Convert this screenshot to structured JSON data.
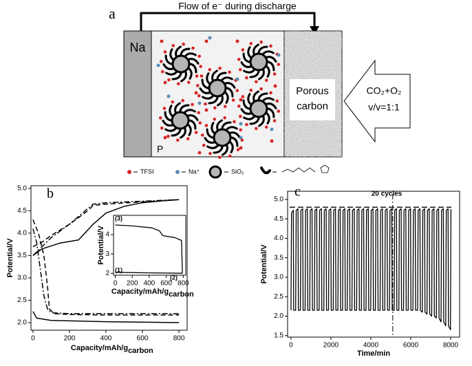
{
  "diagram": {
    "label": "a",
    "flow_label": "Flow of e⁻ during discharge",
    "anode": "Na",
    "cathode": [
      "Porous",
      "carbon"
    ],
    "gas": [
      "CO₂+O₂",
      "v/v=1:1"
    ],
    "electrolyte": "P",
    "legend": [
      "TFSI",
      "Na⁺",
      "SiO₂"
    ]
  },
  "chart_data": [
    {
      "type": "line",
      "label": "b",
      "xlabel": "Capacity/mAh/g",
      "xlabel_sub": "carbon",
      "ylabel": "Potential/V",
      "xlim": [
        -11,
        845
      ],
      "ylim": [
        1.83,
        5.06
      ],
      "xticks": [
        0,
        200,
        400,
        600,
        800
      ],
      "yticks": [
        {
          "value": 2,
          "label": "2.0"
        },
        2.5,
        {
          "value": 3,
          "label": "3.0"
        },
        3.5,
        {
          "value": 4,
          "label": "4.0"
        },
        4.5,
        {
          "value": 5,
          "label": "5.0"
        }
      ],
      "series": [
        {
          "color": "#000000",
          "dash": "solid",
          "x": [
            0,
            20,
            100,
            400,
            800
          ],
          "values": [
            2.25,
            2.1,
            2.05,
            2.02,
            2.0
          ]
        },
        {
          "color": "#000000",
          "dash": "solid",
          "x": [
            0,
            50,
            150,
            250,
            330,
            400,
            500,
            600,
            700,
            800
          ],
          "values": [
            3.5,
            3.65,
            3.78,
            3.85,
            4.2,
            4.45,
            4.6,
            4.68,
            4.72,
            4.75
          ]
        },
        {
          "color": "#000000",
          "dash": "dashed",
          "x": [
            0,
            30,
            60,
            80,
            90,
            120,
            200,
            400,
            800
          ],
          "values": [
            4.3,
            4.0,
            3.5,
            2.8,
            2.3,
            2.2,
            2.18,
            2.17,
            2.17
          ]
        },
        {
          "color": "#000000",
          "dash": "dashed",
          "x": [
            0,
            50,
            100,
            200,
            300,
            330,
            400,
            600,
            800
          ],
          "values": [
            3.7,
            3.8,
            3.95,
            4.2,
            4.5,
            4.62,
            4.65,
            4.7,
            4.75
          ]
        },
        {
          "color": "#000000",
          "dash": "dashdot",
          "x": [
            0,
            20,
            40,
            60,
            80,
            100,
            200,
            800
          ],
          "values": [
            4.1,
            3.8,
            3.2,
            2.6,
            2.3,
            2.22,
            2.2,
            2.2
          ]
        },
        {
          "color": "#000000",
          "dash": "dashdot",
          "x": [
            0,
            100,
            200,
            300,
            330,
            400,
            800
          ],
          "values": [
            3.5,
            3.9,
            4.2,
            4.55,
            4.65,
            4.68,
            4.75
          ]
        }
      ]
    },
    {
      "type": "line",
      "xlabel": "Capacity/mAh/g",
      "xlabel_sub": "carbon",
      "ylabel": "Potential/V",
      "xlim": [
        -20,
        830
      ],
      "ylim": [
        1.9,
        5.0
      ],
      "xticks": [
        0,
        200,
        400,
        600,
        800
      ],
      "yticks": [
        2,
        3,
        4
      ],
      "annotations": [
        "(1)",
        "(2)",
        "(3)"
      ],
      "series": [
        {
          "color": "#000000",
          "dash": "solid",
          "x": [
            0,
            200,
            430,
            520,
            560,
            700,
            780,
            790
          ],
          "values": [
            4.5,
            4.45,
            4.35,
            4.2,
            3.95,
            3.85,
            3.7,
            2.0
          ]
        },
        {
          "color": "#000000",
          "dash": "solid",
          "x": [
            0,
            400,
            790
          ],
          "values": [
            2.05,
            2.02,
            2.0
          ]
        }
      ]
    },
    {
      "type": "line",
      "label": "c",
      "xlabel": "Time/min",
      "ylabel": "Potential/V",
      "xlim": [
        -170,
        8450
      ],
      "ylim": [
        1.46,
        5.21
      ],
      "xticks": [
        0,
        2000,
        4000,
        6000,
        8000
      ],
      "yticks": [
        1.5,
        {
          "value": 2,
          "label": "2.0"
        },
        2.5,
        {
          "value": 3,
          "label": "3.0"
        },
        3.5,
        {
          "value": 4,
          "label": "4.0"
        },
        4.5,
        {
          "value": 5,
          "label": "5.0"
        }
      ],
      "hline": 4.8,
      "vline": 5100,
      "annotation": "20 cycles",
      "series": [
        {
          "color": "#000000",
          "dash": "solid",
          "x": [
            0,
            25,
            115,
            135,
            235,
            260,
            350,
            370,
            470,
            495,
            585,
            605,
            705,
            730,
            820,
            840,
            940,
            965,
            1055,
            1075,
            1175,
            1200,
            1290,
            1310,
            1410,
            1435,
            1525,
            1545,
            1645,
            1670,
            1760,
            1780,
            1880,
            1905,
            1995,
            2015,
            2115,
            2140,
            2230,
            2250,
            2350,
            2375,
            2465,
            2485,
            2585,
            2610,
            2700,
            2720,
            2820,
            2845,
            2935,
            2955,
            3055,
            3080,
            3170,
            3190,
            3290,
            3315,
            3405,
            3425,
            3525,
            3550,
            3640,
            3660,
            3760,
            3785,
            3875,
            3895,
            3995,
            4020,
            4110,
            4130,
            4230,
            4255,
            4345,
            4365,
            4465,
            4490,
            4580,
            4600,
            4700,
            4725,
            4815,
            4835,
            4935,
            4960,
            5050,
            5070,
            5170,
            5195,
            5285,
            5305,
            5405,
            5430,
            5520,
            5540,
            5640,
            5665,
            5755,
            5775,
            5875,
            5900,
            5990,
            6010,
            6110,
            6135,
            6225,
            6245,
            6345,
            6370,
            6460,
            6480,
            6580,
            6605,
            6695,
            6715,
            6815,
            6840,
            6930,
            6950,
            7050,
            7075,
            7165,
            7185,
            7285,
            7310,
            7400,
            7420,
            7520,
            7545,
            7635,
            7655,
            7755,
            7780,
            7870,
            7890,
            7990,
            8015
          ],
          "values": [
            2.15,
            4.65,
            4.72,
            2.15,
            2.15,
            4.72,
            4.76,
            2.15,
            2.15,
            4.72,
            4.76,
            2.15,
            2.15,
            4.72,
            4.76,
            2.15,
            2.15,
            4.72,
            4.76,
            2.15,
            2.15,
            4.72,
            4.76,
            2.15,
            2.15,
            4.72,
            4.76,
            2.15,
            2.15,
            4.72,
            4.76,
            2.15,
            2.15,
            4.72,
            4.76,
            2.15,
            2.15,
            4.72,
            4.76,
            2.15,
            2.15,
            4.72,
            4.76,
            2.15,
            2.15,
            4.72,
            4.76,
            2.15,
            2.15,
            4.72,
            4.76,
            2.15,
            2.15,
            4.72,
            4.76,
            2.15,
            2.15,
            4.72,
            4.76,
            2.15,
            2.15,
            4.72,
            4.76,
            2.15,
            2.15,
            4.72,
            4.76,
            2.15,
            2.15,
            4.72,
            4.76,
            2.15,
            2.15,
            4.72,
            4.76,
            2.15,
            2.15,
            4.72,
            4.76,
            2.15,
            2.15,
            4.72,
            4.76,
            2.15,
            2.15,
            4.72,
            4.76,
            2.15,
            2.15,
            4.72,
            4.76,
            2.15,
            2.15,
            4.72,
            4.76,
            2.15,
            2.15,
            4.72,
            4.76,
            2.15,
            2.15,
            4.72,
            4.76,
            2.15,
            2.15,
            4.72,
            4.76,
            2.15,
            2.15,
            4.72,
            4.76,
            2.15,
            2.1,
            4.72,
            4.76,
            2.1,
            2.05,
            4.72,
            4.76,
            2.05,
            2.0,
            4.72,
            4.76,
            2.0,
            1.95,
            4.72,
            4.76,
            1.95,
            1.85,
            4.72,
            4.76,
            1.85,
            1.75,
            4.72,
            4.76,
            1.75,
            1.65,
            4.75
          ]
        }
      ]
    }
  ]
}
